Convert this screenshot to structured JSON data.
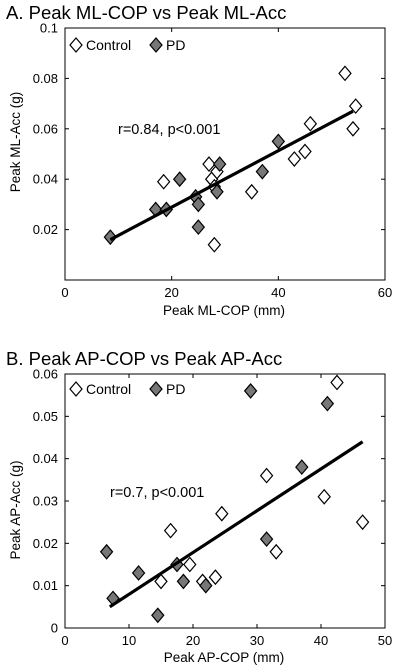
{
  "chart_data": [
    {
      "type": "scatter",
      "title": "A. Peak ML-COP vs Peak ML-Acc",
      "xlabel": "Peak ML-COP (mm)",
      "ylabel": "Peak ML-Acc (g)",
      "xlim": [
        0,
        60
      ],
      "ylim": [
        0,
        0.1
      ],
      "xticks": [
        "0",
        "20",
        "40",
        "60"
      ],
      "yticks": [
        "0.02",
        "0.04",
        "0.06",
        "0.08",
        "0.1"
      ],
      "annotation": "r=0.84,  p<0.001",
      "legend": {
        "placement": "top-left",
        "entries": [
          "Control",
          "PD"
        ]
      },
      "series": [
        {
          "name": "Control",
          "marker": "diamond",
          "fill": "#ffffff",
          "points": [
            [
              18.5,
              0.039
            ],
            [
              27,
              0.046
            ],
            [
              27.5,
              0.04
            ],
            [
              28.5,
              0.043
            ],
            [
              28,
              0.037
            ],
            [
              28,
              0.014
            ],
            [
              35,
              0.035
            ],
            [
              43,
              0.048
            ],
            [
              45,
              0.051
            ],
            [
              46,
              0.062
            ],
            [
              52.5,
              0.082
            ],
            [
              54.5,
              0.069
            ],
            [
              54,
              0.06
            ]
          ]
        },
        {
          "name": "PD",
          "marker": "diamond",
          "fill": "#777777",
          "points": [
            [
              8.5,
              0.017
            ],
            [
              17,
              0.028
            ],
            [
              19,
              0.028
            ],
            [
              21.5,
              0.04
            ],
            [
              24.5,
              0.033
            ],
            [
              25,
              0.03
            ],
            [
              25,
              0.021
            ],
            [
              28.5,
              0.035
            ],
            [
              29,
              0.046
            ],
            [
              37,
              0.043
            ],
            [
              40,
              0.055
            ]
          ]
        }
      ],
      "fit_line": [
        [
          8.5,
          0.016
        ],
        [
          54,
          0.067
        ]
      ]
    },
    {
      "type": "scatter",
      "title": "B. Peak AP-COP vs Peak AP-Acc",
      "xlabel": "Peak AP-COP (mm)",
      "ylabel": "Peak AP-Acc (g)",
      "xlim": [
        0,
        50
      ],
      "ylim": [
        0,
        0.06
      ],
      "xticks": [
        "0",
        "10",
        "20",
        "30",
        "40",
        "50"
      ],
      "yticks": [
        "0",
        "0.01",
        "0.02",
        "0.03",
        "0.04",
        "0.05",
        "0.06"
      ],
      "annotation": "r=0.7,  p<0.001",
      "legend": {
        "placement": "top-left",
        "entries": [
          "Control",
          "PD"
        ]
      },
      "series": [
        {
          "name": "Control",
          "marker": "diamond",
          "fill": "#ffffff",
          "points": [
            [
              15,
              0.011
            ],
            [
              16.5,
              0.023
            ],
            [
              19.5,
              0.015
            ],
            [
              21.5,
              0.011
            ],
            [
              23.5,
              0.012
            ],
            [
              24.5,
              0.027
            ],
            [
              31.5,
              0.036
            ],
            [
              33,
              0.018
            ],
            [
              40.5,
              0.031
            ],
            [
              42.5,
              0.058
            ],
            [
              46.5,
              0.025
            ]
          ]
        },
        {
          "name": "PD",
          "marker": "diamond",
          "fill": "#777777",
          "points": [
            [
              6.5,
              0.018
            ],
            [
              7.5,
              0.007
            ],
            [
              11.5,
              0.013
            ],
            [
              14.5,
              0.003
            ],
            [
              17.5,
              0.015
            ],
            [
              18.5,
              0.011
            ],
            [
              22,
              0.01
            ],
            [
              29,
              0.056
            ],
            [
              31.5,
              0.021
            ],
            [
              37,
              0.038
            ],
            [
              41,
              0.053
            ]
          ]
        }
      ],
      "fit_line": [
        [
          7,
          0.005
        ],
        [
          46.5,
          0.044
        ]
      ]
    }
  ]
}
